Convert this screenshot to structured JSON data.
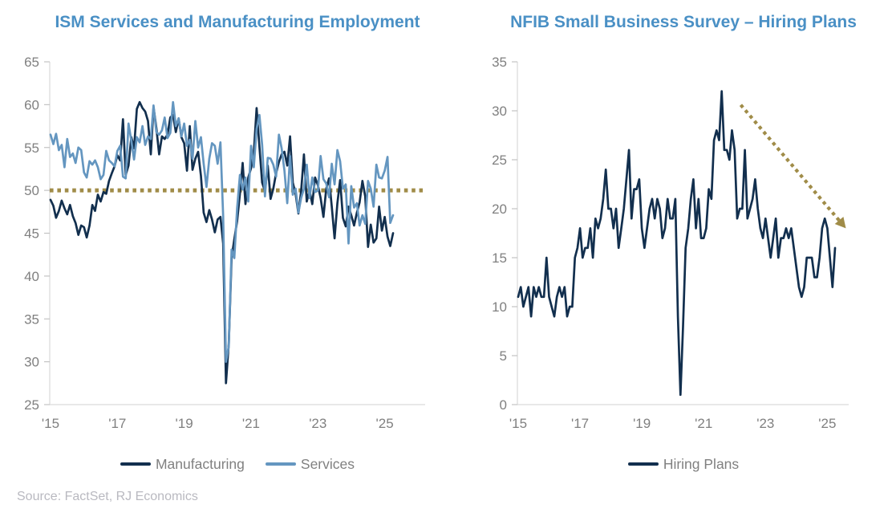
{
  "ui": {
    "source_note": "Source: FactSet, RJ Economics"
  },
  "colors": {
    "title_blue": "#4a90c5",
    "manufacturing_navy": "#122f4e",
    "services_blue": "#6496c0",
    "gold_annotation": "#a08c48",
    "axis_label_gray": "#808080",
    "source_gray": "#b9b9c0"
  },
  "chart_data": [
    {
      "type": "line",
      "title": "ISM Services and Manufacturing Employment",
      "x_start": "2015-01",
      "x_frequency": "monthly",
      "x_tick_labels": [
        "'15",
        "'17",
        "'19",
        "'21",
        "'23",
        "'25"
      ],
      "x_tick_years": [
        2015,
        2017,
        2019,
        2021,
        2023,
        2025
      ],
      "ylim": [
        25,
        65
      ],
      "y_ticks": [
        25,
        30,
        35,
        40,
        45,
        50,
        55,
        60,
        65
      ],
      "grid": false,
      "legend_position": "bottom",
      "reference_line": {
        "value": 50,
        "color": "#a08c48",
        "style": "dotted"
      },
      "series": [
        {
          "name": "Manufacturing",
          "color": "#122f4e",
          "values": [
            48.9,
            48.2,
            46.8,
            47.6,
            48.8,
            47.9,
            47.2,
            48.3,
            47.0,
            46.2,
            44.8,
            45.9,
            45.7,
            44.5,
            45.9,
            48.3,
            47.6,
            49.5,
            48.7,
            49.8,
            49.6,
            51.1,
            52.0,
            52.8,
            54.1,
            53.5,
            58.3,
            51.8,
            52.9,
            56.2,
            54.9,
            59.5,
            60.3,
            59.6,
            59.2,
            58.1,
            54.2,
            59.7,
            57.3,
            54.2,
            56.3,
            56.0,
            56.5,
            58.5,
            58.8,
            56.8,
            58.4,
            56.2,
            55.5,
            52.3,
            57.5,
            52.4,
            53.7,
            54.5,
            51.7,
            47.4,
            46.3,
            47.7,
            46.6,
            45.1,
            46.6,
            46.9,
            43.8,
            27.5,
            32.1,
            42.1,
            44.3,
            46.4,
            49.6,
            53.2,
            48.4,
            51.5,
            52.6,
            54.4,
            59.6,
            55.1,
            50.9,
            49.9,
            52.9,
            49.0,
            50.2,
            52.0,
            53.3,
            54.2,
            54.5,
            52.9,
            56.3,
            50.9,
            49.6,
            47.3,
            49.9,
            54.2,
            48.7,
            50.0,
            48.4,
            51.5,
            50.6,
            49.1,
            46.9,
            50.2,
            51.4,
            48.1,
            44.4,
            48.5,
            51.2,
            46.8,
            45.8,
            48.1,
            47.1,
            45.9,
            47.4,
            48.6,
            51.1,
            49.3,
            43.4,
            46.0,
            43.9,
            44.4,
            48.1,
            45.3,
            46.9,
            44.6,
            43.5,
            45.0
          ]
        },
        {
          "name": "Services",
          "color": "#6496c0",
          "values": [
            56.5,
            55.4,
            56.6,
            54.7,
            55.3,
            52.7,
            56.0,
            53.9,
            54.3,
            53.2,
            55.0,
            54.7,
            52.1,
            51.5,
            53.4,
            53.0,
            53.5,
            52.7,
            51.3,
            51.8,
            54.6,
            53.5,
            53.2,
            52.8,
            54.6,
            55.2,
            51.6,
            51.4,
            57.8,
            55.8,
            53.6,
            56.2,
            55.6,
            57.5,
            55.3,
            56.3,
            56.0,
            59.9,
            56.8,
            56.5,
            57.0,
            58.5,
            56.1,
            56.7,
            60.3,
            57.5,
            58.4,
            56.3,
            57.8,
            55.2,
            55.9,
            53.7,
            58.1,
            55.0,
            56.2,
            53.1,
            50.4,
            53.7,
            55.5,
            55.2,
            53.1,
            55.6,
            47.0,
            30.0,
            31.8,
            43.1,
            42.1,
            47.9,
            51.8,
            50.1,
            51.5,
            48.7,
            55.2,
            52.7,
            57.2,
            58.8,
            55.3,
            49.3,
            53.8,
            53.7,
            53.0,
            51.6,
            56.5,
            54.9,
            52.3,
            48.5,
            54.0,
            49.5,
            50.2,
            47.4,
            49.1,
            50.2,
            53.0,
            49.1,
            51.5,
            49.8,
            50.0,
            54.0,
            51.3,
            50.8,
            49.2,
            53.1,
            50.7,
            54.7,
            53.4,
            50.2,
            50.7,
            43.8,
            50.5,
            48.0,
            48.5,
            45.9,
            47.1,
            46.1,
            51.1,
            50.2,
            48.1,
            53.0,
            51.5,
            51.4,
            52.3,
            53.9,
            46.2,
            47.1
          ]
        }
      ]
    },
    {
      "type": "line",
      "title": "NFIB Small Business Survey – Hiring Plans",
      "x_start": "2015-01",
      "x_frequency": "monthly",
      "x_tick_labels": [
        "'15",
        "'17",
        "'19",
        "'21",
        "'23",
        "'25"
      ],
      "x_tick_years": [
        2015,
        2017,
        2019,
        2021,
        2023,
        2025
      ],
      "ylim": [
        0,
        35
      ],
      "y_ticks": [
        0,
        5,
        10,
        15,
        20,
        25,
        30,
        35
      ],
      "grid": false,
      "legend_position": "bottom",
      "annotation_arrow": {
        "from_x": 2022.2,
        "from_y": 30.6,
        "to_x": 2025.6,
        "to_y": 18.0,
        "color": "#a08c48",
        "style": "dotted"
      },
      "series": [
        {
          "name": "Hiring Plans",
          "color": "#122f4e",
          "values": [
            11,
            12,
            10,
            11,
            12,
            9,
            12,
            11,
            12,
            11,
            11,
            15,
            11,
            10,
            9,
            11,
            12,
            11,
            12,
            9,
            10,
            10,
            15,
            16,
            18,
            15,
            16,
            16,
            18,
            15,
            19,
            18,
            19,
            21,
            24,
            20,
            20,
            18,
            20,
            16,
            18,
            20,
            23,
            26,
            19,
            22,
            22,
            23,
            18,
            16,
            18,
            20,
            21,
            19,
            21,
            20,
            17,
            18,
            21,
            19,
            19,
            21,
            9,
            1,
            8,
            16,
            18,
            21,
            23,
            18,
            21,
            17,
            17,
            18,
            22,
            21,
            27,
            28,
            27,
            32,
            26,
            26,
            25,
            28,
            26,
            19,
            20,
            20,
            26,
            19,
            20,
            21,
            23,
            20,
            18,
            17,
            19,
            17,
            15,
            17,
            19,
            15,
            17,
            17,
            18,
            17,
            18,
            16,
            14,
            12,
            11,
            12,
            15,
            15,
            15,
            13,
            13,
            15,
            18,
            19,
            18,
            15,
            12,
            16
          ]
        }
      ]
    }
  ]
}
